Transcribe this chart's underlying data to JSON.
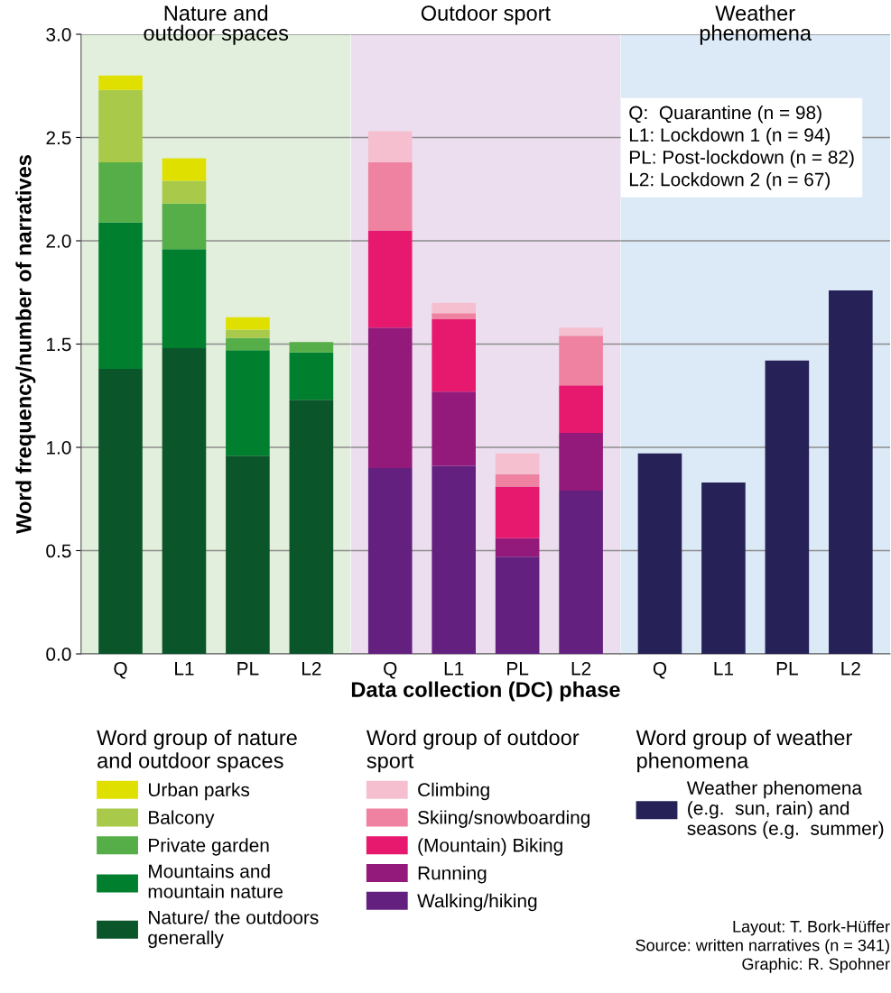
{
  "chart_data": [
    {
      "type": "bar",
      "title": "Nature and\noutdoor spaces",
      "ylabel": "Word frequency/number of narratives",
      "categories": [
        "Q",
        "L1",
        "PL",
        "L2"
      ],
      "stacked": true,
      "ylim": [
        0,
        3.0
      ],
      "yticks": [
        {
          "value": 0,
          "label": "0.0"
        },
        0.5,
        {
          "value": 1,
          "label": "1.0"
        },
        1.5,
        {
          "value": 2,
          "label": "2.0"
        },
        2.5,
        {
          "value": 3,
          "label": "3.0"
        }
      ],
      "grid": "y",
      "legend": "bottom",
      "legend_title": "Word group of nature\nand outdoor spaces",
      "bands": [
        {
          "axis": "y",
          "from": 0,
          "to": 3.0,
          "color": "#e2efdc"
        }
      ],
      "series": [
        {
          "name": "Nature/ the outdoors\ngenerally",
          "color": "#0a5529",
          "values": [
            1.38,
            1.48,
            0.96,
            1.23
          ]
        },
        {
          "name": "Mountains and\nmountain nature",
          "color": "#00802f",
          "values": [
            0.71,
            0.48,
            0.51,
            0.23
          ]
        },
        {
          "name": "Private garden",
          "color": "#55ae47",
          "values": [
            0.29,
            0.22,
            0.06,
            0.05
          ]
        },
        {
          "name": "Balcony",
          "color": "#a8c94a",
          "values": [
            0.35,
            0.11,
            0.04,
            null
          ]
        },
        {
          "name": "Urban parks",
          "color": "#dfe000",
          "values": [
            0.07,
            0.11,
            0.06,
            null
          ]
        }
      ]
    },
    {
      "type": "bar",
      "title": "Outdoor sport",
      "xlabel": "Data collection (DC) phase",
      "categories": [
        "Q",
        "L1",
        "PL",
        "L2"
      ],
      "stacked": true,
      "ylim": [
        0,
        3.0
      ],
      "yticks": [
        0,
        0.5,
        1,
        1.5,
        2,
        2.5,
        3
      ],
      "tick_labels": "x",
      "grid": "y",
      "legend": "bottom",
      "legend_title": "Word group of outdoor\nsport",
      "bands": [
        {
          "axis": "y",
          "from": 0,
          "to": 3.0,
          "color": "#ecdeee"
        }
      ],
      "series": [
        {
          "name": "Walking/hiking",
          "color": "#63207f",
          "values": [
            0.9,
            0.91,
            0.47,
            0.79
          ]
        },
        {
          "name": "Running",
          "color": "#931a7a",
          "values": [
            0.68,
            0.36,
            0.09,
            0.28
          ]
        },
        {
          "name": "(Mountain) Biking",
          "color": "#e6196e",
          "values": [
            0.47,
            0.35,
            0.25,
            0.23
          ]
        },
        {
          "name": "Skiing/snowboarding",
          "color": "#ee82a0",
          "values": [
            0.33,
            0.03,
            0.06,
            0.24
          ]
        },
        {
          "name": "Climbing",
          "color": "#f5bfd0",
          "values": [
            0.15,
            0.05,
            0.1,
            0.04
          ]
        }
      ]
    },
    {
      "type": "bar",
      "title": "Weather\nphenomena",
      "categories": [
        "Q",
        "L1",
        "PL",
        "L2"
      ],
      "ylim": [
        0,
        3.0
      ],
      "yticks": [
        0,
        0.5,
        1,
        1.5,
        2,
        2.5,
        3
      ],
      "tick_labels": "x",
      "grid": "y",
      "legend": "bottom",
      "legend_title": "Word group of weather\nphenomena",
      "bands": [
        {
          "axis": "y",
          "from": 0,
          "to": 3.0,
          "color": "#dce9f7"
        }
      ],
      "series": [
        {
          "name": "Weather phenomena\n(e.g.  sun, rain) and\nseasons (e.g.  summer)",
          "color": "#262258",
          "values": [
            0.97,
            0.83,
            1.42,
            1.76
          ]
        }
      ],
      "annotations": [
        "Q:  Quarantine (n = 98)\nL1: Lockdown 1 (n = 94)\nPL: Post-lockdown (n = 82)\nL2: Lockdown 2 (n = 67)",
        "Layout: T. Bork-Hüffer\nSource: written narratives (n = 341)\nGraphic: R. Spohner"
      ]
    }
  ]
}
